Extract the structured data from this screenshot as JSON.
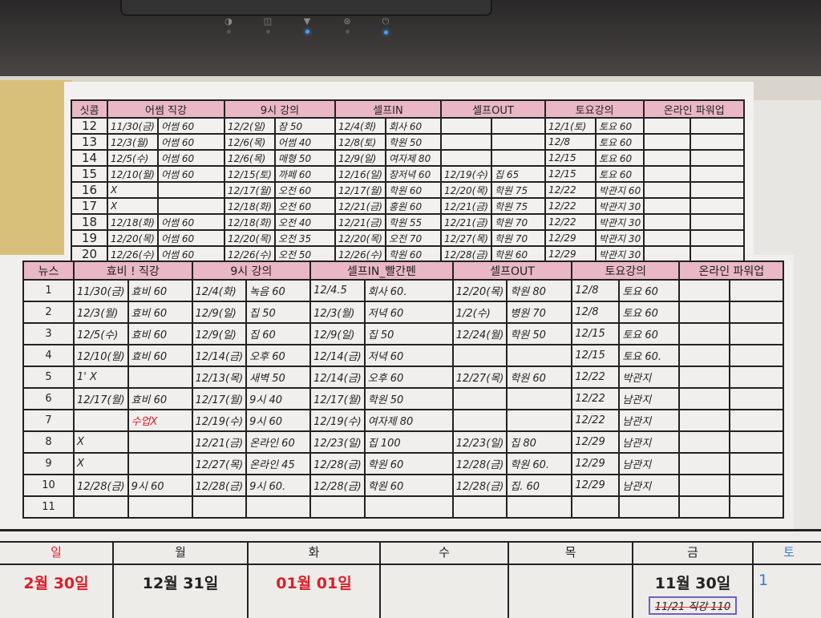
{
  "device": {
    "indicator_icons": [
      "lock-icon",
      "disk-icon",
      "wifi-icon",
      "bluetooth-icon",
      "power-icon"
    ]
  },
  "colors": {
    "header_pink": "#e9b8c4",
    "red_ink": "#d9202a",
    "memo_box": "#7060c0"
  },
  "top_table": {
    "headers": [
      "싯콤",
      "어썸 직강",
      "9시 강의",
      "셀프IN",
      "셀프OUT",
      "토요강의",
      "온라인 파워업"
    ],
    "rows": [
      {
        "num": "12",
        "cells": [
          "11/30(금)",
          "어썸 60",
          "12/2(일)",
          "잠 50",
          "12/4(화)",
          "회사 60",
          "",
          "",
          "12/1(토)",
          "토요 60",
          "",
          ""
        ]
      },
      {
        "num": "13",
        "cells": [
          "12/3(월)",
          "어썸 60",
          "12/6(목)",
          "어썸 40",
          "12/8(토)",
          "학원 50",
          "",
          "",
          "12/8",
          "토요 60",
          "",
          ""
        ]
      },
      {
        "num": "14",
        "cells": [
          "12/5(수)",
          "어썸 60",
          "12/6(목)",
          "매형 50",
          "12/9(일)",
          "여자제 80",
          "",
          "",
          "12/15",
          "토요 60",
          "",
          ""
        ]
      },
      {
        "num": "15",
        "cells": [
          "12/10(월)",
          "어썸 60",
          "12/15(토)",
          "까페 60",
          "12/16(일)",
          "장저녁 60",
          "12/19(수)",
          "집 65",
          "12/15",
          "토요 60",
          "",
          ""
        ]
      },
      {
        "num": "16",
        "cells": [
          "X",
          "",
          "12/17(월)",
          "오전 60",
          "12/17(월)",
          "학원 60",
          "12/20(목)",
          "학원 75",
          "12/22",
          "박관지 60",
          "",
          ""
        ]
      },
      {
        "num": "17",
        "cells": [
          "X",
          "",
          "12/18(화)",
          "오전 60",
          "12/21(금)",
          "홍원 60",
          "12/21(금)",
          "학원 75",
          "12/22",
          "박관지 30",
          "",
          ""
        ]
      },
      {
        "num": "18",
        "cells": [
          "12/18(화)",
          "어썸 60",
          "12/18(화)",
          "오전 40",
          "12/21(금)",
          "학원 55",
          "12/21(금)",
          "학원 70",
          "12/22",
          "박관지 30",
          "",
          ""
        ]
      },
      {
        "num": "19",
        "cells": [
          "12/20(목)",
          "어썸 60",
          "12/20(목)",
          "오전 35",
          "12/20(목)",
          "오전 70",
          "12/27(목)",
          "학원 70",
          "12/29",
          "박관지 30",
          "",
          ""
        ]
      },
      {
        "num": "20",
        "cells": [
          "12/26(수)",
          "어썸 60",
          "12/26(수)",
          "오전 50",
          "12/26(수)",
          "학원 60",
          "12/28(금)",
          "학원 60",
          "12/29",
          "박관지 30",
          "",
          ""
        ]
      }
    ]
  },
  "bottom_table": {
    "headers": [
      "뉴스",
      "효비 ! 직강",
      "9시 강의",
      "셀프IN_빨간펜",
      "셀프OUT",
      "토요강의",
      "온라인 파워업"
    ],
    "rows": [
      {
        "num": "1",
        "cells": [
          "11/30(금)",
          "효비 60",
          "12/4(화)",
          "녹음 60",
          "12/4.5",
          "회사 60.",
          "12/20(목)",
          "학원 80",
          "12/8",
          "토요 60",
          "",
          ""
        ]
      },
      {
        "num": "2",
        "cells": [
          "12/3(월)",
          "효비 60",
          "12/9(일)",
          "집 50",
          "12/3(월)",
          "저녁 60",
          "1/2(수)",
          "병원 70",
          "12/8",
          "토요 60",
          "",
          ""
        ]
      },
      {
        "num": "3",
        "cells": [
          "12/5(수)",
          "효비 60",
          "12/9(일)",
          "집 60",
          "12/9(일)",
          "집 50",
          "12/24(월)",
          "학원 50",
          "12/15",
          "토요 60",
          "",
          ""
        ]
      },
      {
        "num": "4",
        "cells": [
          "12/10(월)",
          "효비 60",
          "12/14(금)",
          "오후 60",
          "12/14(금)",
          "저녁 60",
          "",
          "",
          "12/15",
          "토요 60.",
          "",
          ""
        ]
      },
      {
        "num": "5",
        "cells": [
          "1' X",
          "",
          "12/13(목)",
          "새벽 50",
          "12/14(금)",
          "오후 60",
          "12/27(목)",
          "학원 60",
          "12/22",
          "박관지",
          "",
          ""
        ]
      },
      {
        "num": "6",
        "cells": [
          "12/17(월)",
          "효비 60",
          "12/17(월)",
          "9시 40",
          "12/17(월)",
          "학원 50",
          "",
          "",
          "12/22",
          "남관지",
          "",
          ""
        ]
      },
      {
        "num": "7",
        "cells": [
          "",
          "수업X",
          "12/19(수)",
          "9시 60",
          "12/19(수)",
          "여자제 80",
          "",
          "",
          "12/22",
          "남관지",
          "",
          ""
        ]
      },
      {
        "num": "8",
        "cells": [
          "X",
          "",
          "12/21(금)",
          "온라인 60",
          "12/23(일)",
          "집 100",
          "12/23(일)",
          "집 80",
          "12/29",
          "남관지",
          "",
          ""
        ]
      },
      {
        "num": "9",
        "cells": [
          "X",
          "",
          "12/27(목)",
          "온라인 45",
          "12/28(금)",
          "학원 60",
          "12/28(금)",
          "학원 60.",
          "12/29",
          "남관지",
          "",
          ""
        ]
      },
      {
        "num": "10",
        "cells": [
          "12/28(금)",
          "9시 60",
          "12/28(금)",
          "9시 60.",
          "12/28(금)",
          "학원 60",
          "12/28(금)",
          "집. 60",
          "12/29",
          "남관지",
          "",
          ""
        ]
      },
      {
        "num": "11",
        "cells": [
          "",
          "",
          "",
          "",
          "",
          "",
          "",
          "",
          "",
          "",
          "",
          ""
        ]
      }
    ],
    "red_note": "수업X"
  },
  "calendar": {
    "days": [
      "일",
      "월",
      "화",
      "수",
      "목",
      "금",
      "토"
    ],
    "dates": [
      "2월 30일",
      "12월 31일",
      "01월 01일",
      "",
      "",
      "11월 30일",
      "1"
    ],
    "friday_memo": "11/21 직강 110"
  }
}
